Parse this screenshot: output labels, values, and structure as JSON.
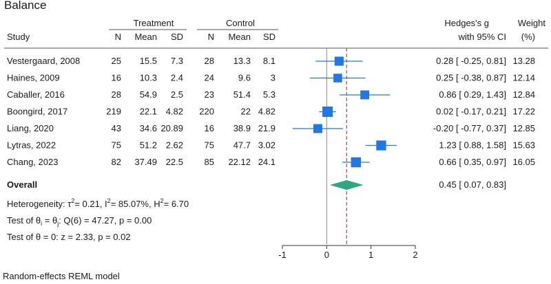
{
  "chart_data": {
    "type": "forest",
    "title": "Balance",
    "group_headers": {
      "treatment": "Treatment",
      "control": "Control"
    },
    "columns": {
      "study": "Study",
      "n": "N",
      "mean": "Mean",
      "sd": "SD",
      "effect_line1": "Hedges's g",
      "effect_line2": "with 95% CI",
      "weight_line1": "Weight",
      "weight_line2": "(%)"
    },
    "studies": [
      {
        "label": "Vestergaard, 2008",
        "t_n": "25",
        "t_mean": "15.5",
        "t_sd": "7.3",
        "c_n": "28",
        "c_mean": "13.3",
        "c_sd": "8.1",
        "g": 0.28,
        "lo": -0.25,
        "hi": 0.81,
        "ci_text": "0.28 [ -0.25, 0.81]",
        "weight": 13.28,
        "weight_text": "13.28"
      },
      {
        "label": "Haines, 2009",
        "t_n": "16",
        "t_mean": "10.3",
        "t_sd": "2.4",
        "c_n": "24",
        "c_mean": "9.6",
        "c_sd": "3",
        "g": 0.25,
        "lo": -0.38,
        "hi": 0.87,
        "ci_text": "0.25 [ -0.38, 0.87]",
        "weight": 12.14,
        "weight_text": "12.14"
      },
      {
        "label": "Caballer, 2016",
        "t_n": "28",
        "t_mean": "54.9",
        "t_sd": "2.5",
        "c_n": "23",
        "c_mean": "51.4",
        "c_sd": "5.3",
        "g": 0.86,
        "lo": 0.29,
        "hi": 1.43,
        "ci_text": "0.86 [  0.29, 1.43]",
        "weight": 12.84,
        "weight_text": "12.84"
      },
      {
        "label": "Boongird, 2017",
        "t_n": "219",
        "t_mean": "22.1",
        "t_sd": "4.82",
        "c_n": "220",
        "c_mean": "22",
        "c_sd": "4.82",
        "g": 0.02,
        "lo": -0.17,
        "hi": 0.21,
        "ci_text": "0.02 [ -0.17, 0.21]",
        "weight": 17.22,
        "weight_text": "17.22"
      },
      {
        "label": "Liang, 2020",
        "t_n": "43",
        "t_mean": "34.6",
        "t_sd": "20.89",
        "c_n": "16",
        "c_mean": "38.9",
        "c_sd": "21.9",
        "g": -0.2,
        "lo": -0.77,
        "hi": 0.37,
        "ci_text": "-0.20 [ -0.77, 0.37]",
        "weight": 12.85,
        "weight_text": "12.85"
      },
      {
        "label": "Lytras, 2022",
        "t_n": "75",
        "t_mean": "51.2",
        "t_sd": "2.62",
        "c_n": "75",
        "c_mean": "47.7",
        "c_sd": "3.02",
        "g": 1.23,
        "lo": 0.88,
        "hi": 1.58,
        "ci_text": "1.23 [  0.88, 1.58]",
        "weight": 15.63,
        "weight_text": "15.63"
      },
      {
        "label": "Chang, 2023",
        "t_n": "82",
        "t_mean": "37.49",
        "t_sd": "22.5",
        "c_n": "85",
        "c_mean": "22.12",
        "c_sd": "24.1",
        "g": 0.66,
        "lo": 0.35,
        "hi": 0.97,
        "ci_text": "0.66 [  0.35, 0.97]",
        "weight": 16.05,
        "weight_text": "16.05"
      }
    ],
    "overall": {
      "label": "Overall",
      "g": 0.45,
      "lo": 0.07,
      "hi": 0.83,
      "ci_text": "0.45 [  0.07, 0.83]"
    },
    "heterogeneity": {
      "prefix": "Heterogeneity: τ",
      "tau2": "= 0.21, I",
      "i2": "= 85.07%, H",
      "h2": "= 6.70",
      "sup": "2"
    },
    "test_homogeneity": {
      "prefix": "Test of θ",
      "sub_i": "i",
      "mid": " = θ",
      "sub_j": "j",
      "rest": ": Q(6) = 47.27, p = 0.00"
    },
    "test_effect": "Test of θ = 0: z = 2.33, p = 0.02",
    "x_axis": {
      "ticks": [
        -1,
        0,
        1,
        2
      ],
      "tick_labels": [
        "-1",
        "0",
        "1",
        "2"
      ],
      "range": [
        -1,
        2
      ]
    },
    "footer": "Random-effects REML model",
    "colors": {
      "marker": "#1f77e8",
      "overall": "#2ca97f",
      "ref_line": "#b04a5a",
      "zero_line": "#888888"
    }
  }
}
